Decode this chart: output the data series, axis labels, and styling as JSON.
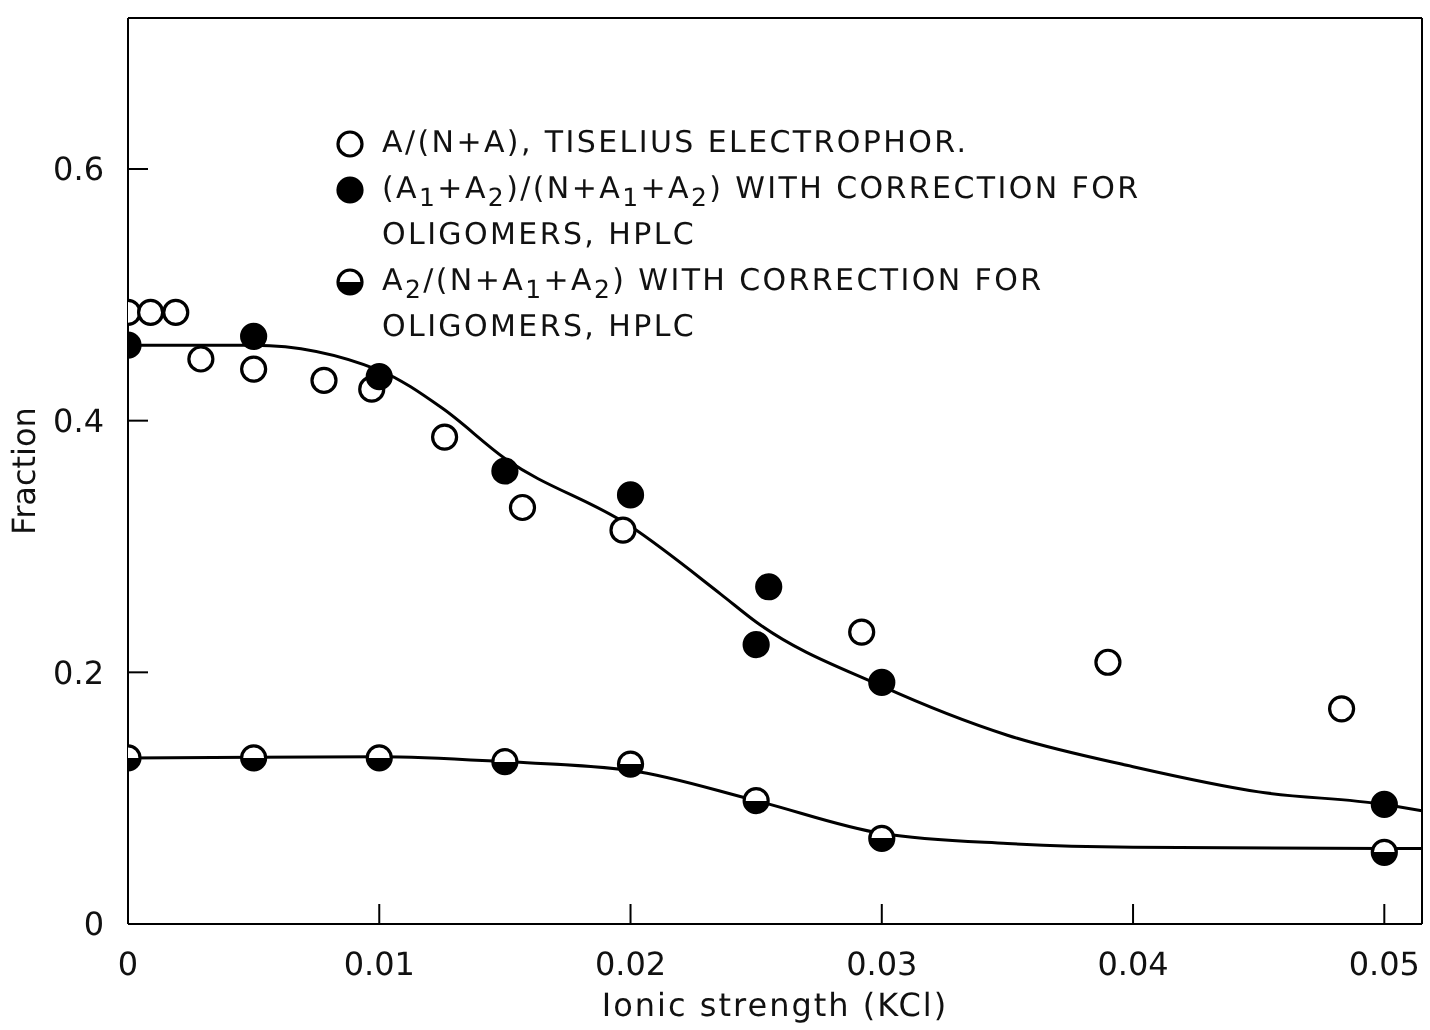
{
  "chart_data": {
    "type": "scatter",
    "xlabel": "Ionic strength (KCl)",
    "ylabel": "Fraction",
    "xlim": [
      0,
      0.0515
    ],
    "xticks": [
      0,
      0.01,
      0.02,
      0.03,
      0.04,
      0.05
    ],
    "ylim": [
      0,
      0.72
    ],
    "yticks": [
      0,
      0.2,
      0.4,
      0.6
    ],
    "grid": false,
    "legend": "top",
    "marker": "circle",
    "series": [
      {
        "name": "A/(N+A), TISELIUS ELECTROPHOR.",
        "color": "#000000",
        "x": [
          0,
          0.0009,
          0.0019,
          0.0029,
          0.005,
          0.0078,
          0.0097,
          0.0126,
          0.0157,
          0.0197,
          0.0292,
          0.039,
          0.0483
        ],
        "values": [
          0.486,
          0.486,
          0.486,
          0.449,
          0.441,
          0.432,
          0.425,
          0.387,
          0.331,
          0.313,
          0.232,
          0.208,
          0.171
        ]
      },
      {
        "name": "(A$_{1}$+A$_{2}$)/(N+A$_{1}$+A$_{2}$) WITH CORRECTION FOR OLIGOMERS, HPLC",
        "color": "#000000",
        "x": [
          0,
          0.005,
          0.01,
          0.015,
          0.02,
          0.025,
          0.0255,
          0.03,
          0.05
        ],
        "values": [
          0.46,
          0.467,
          0.435,
          0.36,
          0.341,
          0.222,
          0.268,
          0.192,
          0.095
        ]
      },
      {
        "name": "A$_{2}$/(N+A$_{1}$+A$_{2}$) WITH CORRECTION FOR OLIGOMERS, HPLC",
        "color": "#000000",
        "x": [
          0,
          0.005,
          0.01,
          0.015,
          0.02,
          0.025,
          0.03,
          0.05
        ],
        "values": [
          0.132,
          0.132,
          0.132,
          0.129,
          0.127,
          0.098,
          0.068,
          0.057
        ]
      },
      {
        "type": "line",
        "marker": "none",
        "color": "#000000",
        "x": [
          0,
          0.005,
          0.01,
          0.0125,
          0.015,
          0.02,
          0.0236,
          0.025,
          0.03,
          0.035,
          0.04,
          0.045,
          0.05,
          0.0515
        ],
        "values": [
          0.46,
          0.46,
          0.44,
          0.41,
          0.37,
          0.316,
          0.262,
          0.24,
          0.189,
          0.15,
          0.125,
          0.105,
          0.095,
          0.09
        ]
      },
      {
        "type": "line",
        "marker": "none",
        "color": "#000000",
        "x": [
          0,
          0.01,
          0.015,
          0.02,
          0.025,
          0.03,
          0.035,
          0.04,
          0.05,
          0.0515
        ],
        "values": [
          0.132,
          0.133,
          0.129,
          0.122,
          0.098,
          0.072,
          0.064,
          0.061,
          0.06,
          0.06
        ]
      }
    ]
  }
}
